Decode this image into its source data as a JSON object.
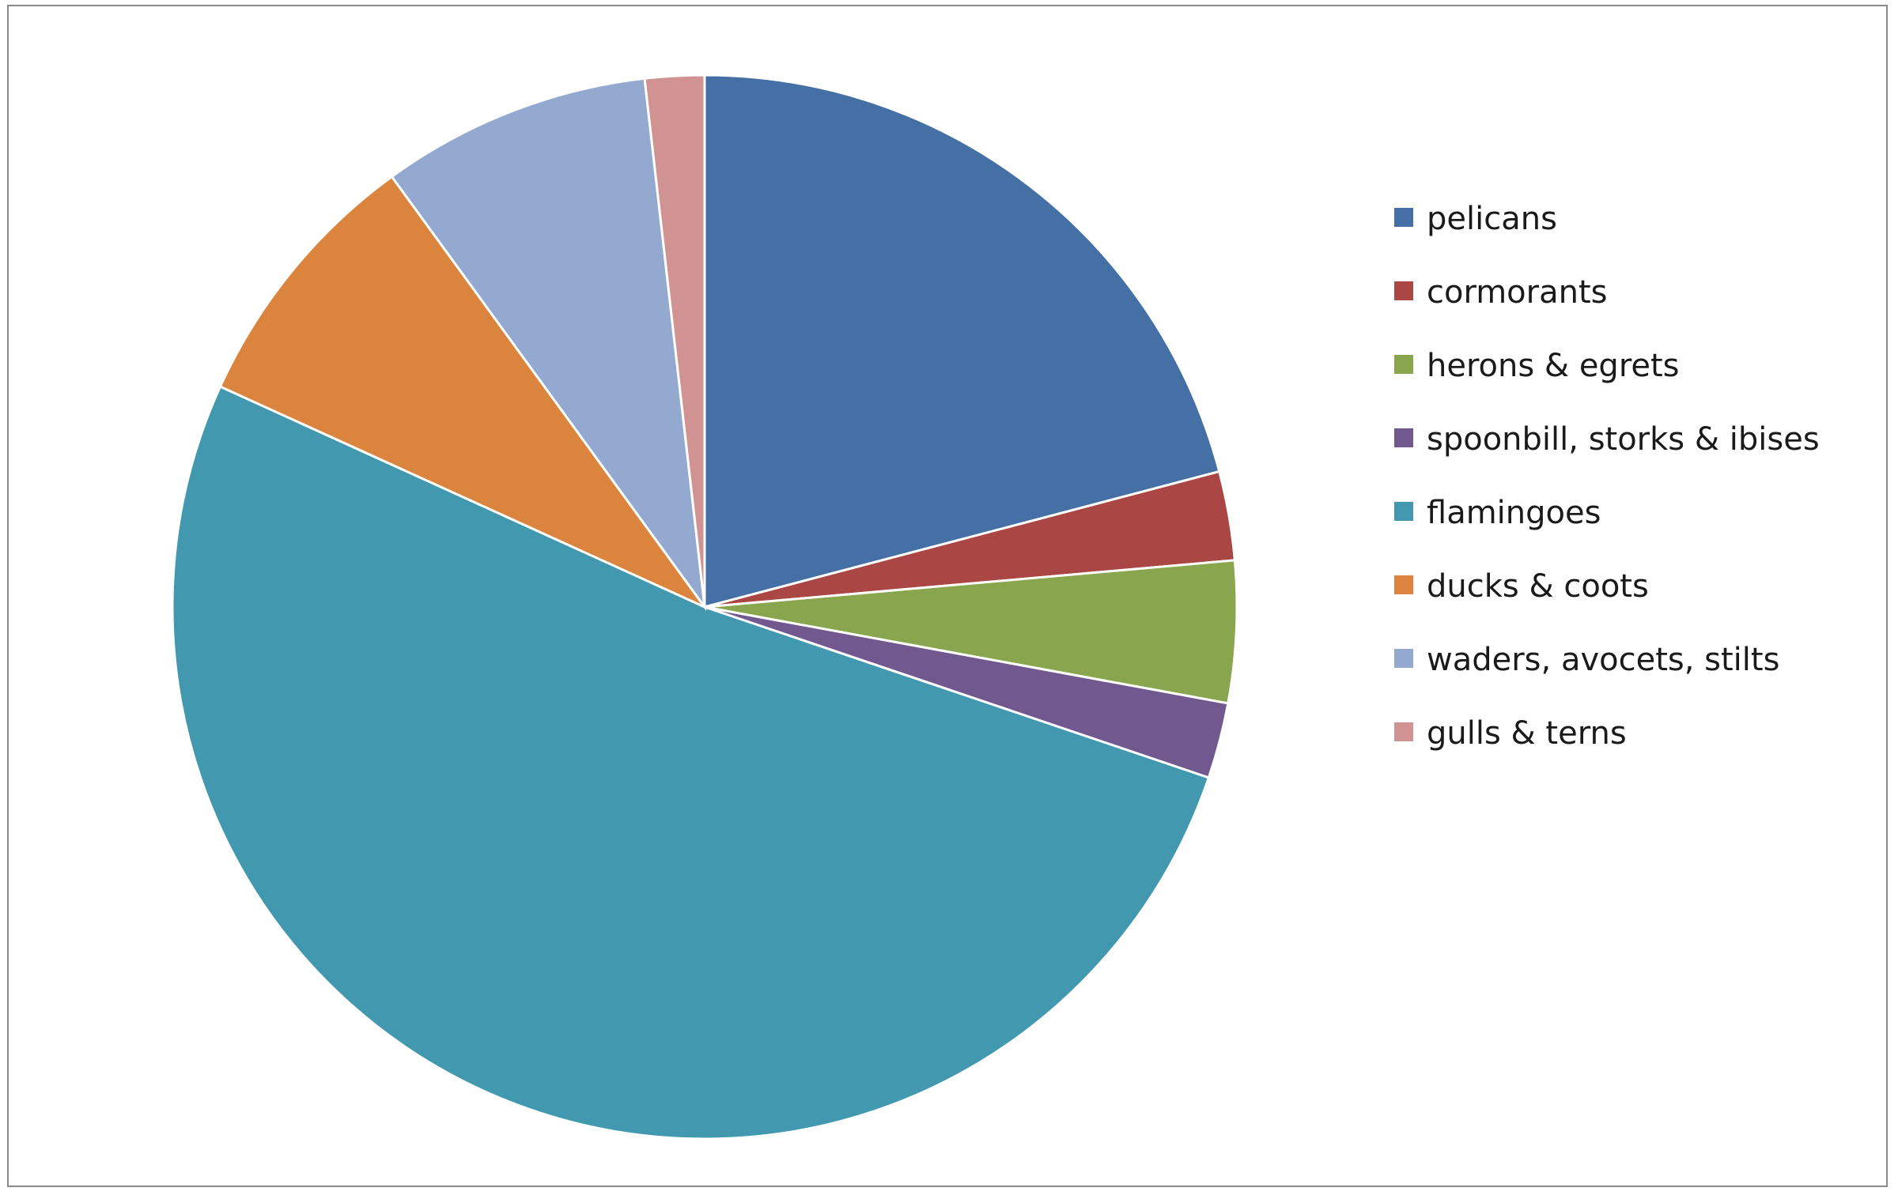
{
  "chart_data": {
    "type": "pie",
    "title": "",
    "start_angle_deg": 0,
    "direction": "clockwise",
    "legend_position": "right",
    "unit": "percent",
    "slices": [
      {
        "label": "pelicans",
        "value": 20.9,
        "color": "#4470a5"
      },
      {
        "label": "cormorants",
        "value": 2.7,
        "color": "#aa4643"
      },
      {
        "label": "herons & egrets",
        "value": 4.3,
        "color": "#89a54e"
      },
      {
        "label": "spoonbill,  storks & ibises",
        "value": 2.3,
        "color": "#71588f"
      },
      {
        "label": "flamingoes",
        "value": 51.6,
        "color": "#4198af"
      },
      {
        "label": "ducks & coots",
        "value": 8.2,
        "color": "#db843d"
      },
      {
        "label": "waders, avocets, stilts",
        "value": 8.2,
        "color": "#93a9cf"
      },
      {
        "label": "gulls & terns",
        "value": 1.8,
        "color": "#d19392"
      }
    ]
  }
}
